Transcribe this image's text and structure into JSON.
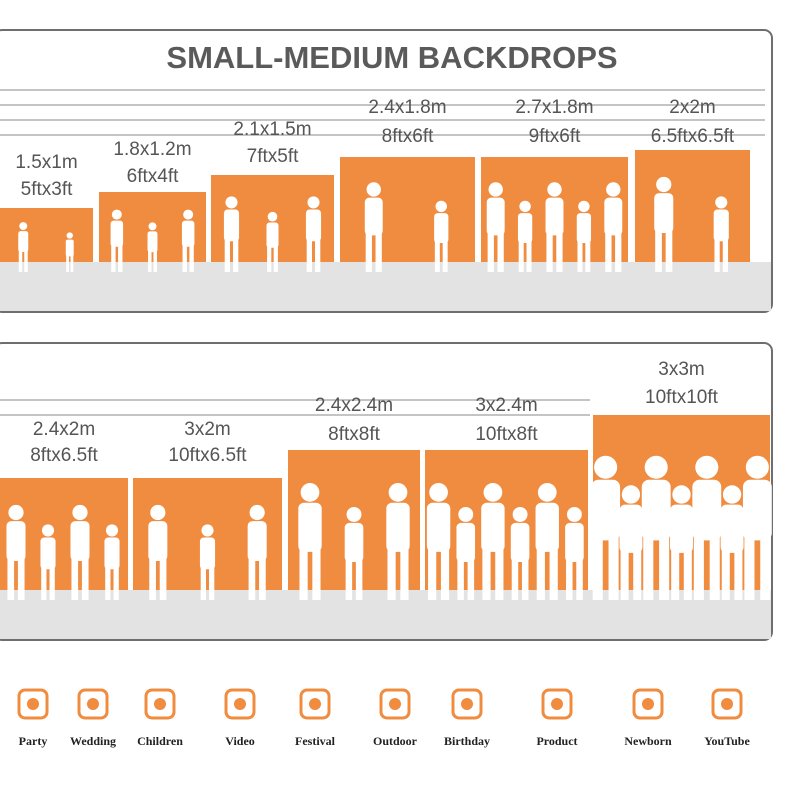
{
  "title": "SMALL-MEDIUM BACKDROPS",
  "panels": [
    {
      "items": [
        {
          "metric": "1.5x1m",
          "imperial": "5ftx3ft"
        },
        {
          "metric": "1.8x1.2m",
          "imperial": "6ftx4ft"
        },
        {
          "metric": "2.1x1.5m",
          "imperial": "7ftx5ft"
        },
        {
          "metric": "2.4x1.8m",
          "imperial": "8ftx6ft"
        },
        {
          "metric": "2.7x1.8m",
          "imperial": "9ftx6ft"
        },
        {
          "metric": "2x2m",
          "imperial": "6.5ftx6.5ft"
        }
      ]
    },
    {
      "items": [
        {
          "metric": "2.4x2m",
          "imperial": "8ftx6.5ft"
        },
        {
          "metric": "3x2m",
          "imperial": "10ftx6.5ft"
        },
        {
          "metric": "2.4x2.4m",
          "imperial": "8ftx8ft"
        },
        {
          "metric": "3x2.4m",
          "imperial": "10ftx8ft"
        },
        {
          "metric": "3x3m",
          "imperial": "10ftx10ft"
        }
      ]
    }
  ],
  "uses": [
    "Party",
    "Wedding",
    "Children",
    "Video",
    "Festival",
    "Outdoor",
    "Birthday",
    "Product",
    "Newborn",
    "YouTube"
  ]
}
